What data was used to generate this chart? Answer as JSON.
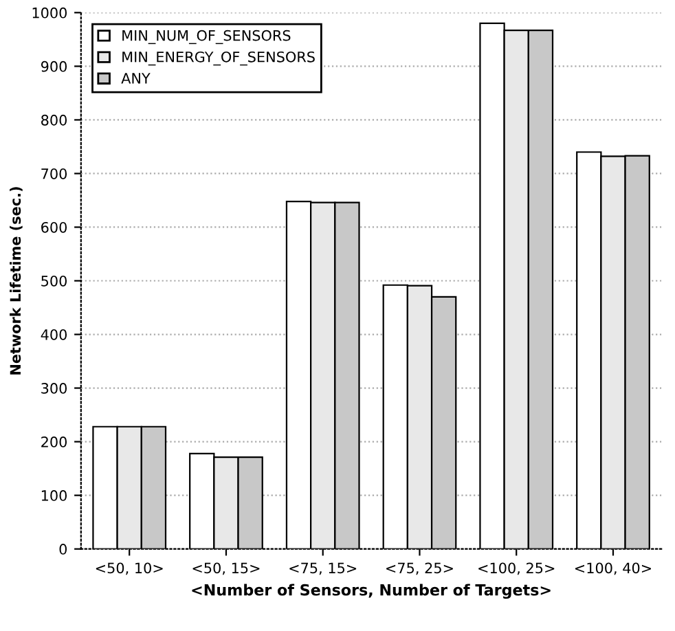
{
  "chart_data": {
    "type": "bar",
    "xlabel": "<Number of Sensors, Number of Targets>",
    "ylabel": "Network Lifetime (sec.)",
    "categories": [
      "<50, 10>",
      "<50, 15>",
      "<75, 15>",
      "<75, 25>",
      "<100, 25>",
      "<100, 40>"
    ],
    "series": [
      {
        "name": "MIN_NUM_OF_SENSORS",
        "color": "#ffffff",
        "values": [
          228,
          178,
          648,
          492,
          980,
          740
        ]
      },
      {
        "name": "MIN_ENERGY_OF_SENSORS",
        "color": "#e8e8e8",
        "values": [
          228,
          171,
          646,
          491,
          967,
          732
        ]
      },
      {
        "name": "ANY",
        "color": "#c8c8c8",
        "values": [
          228,
          171,
          646,
          470,
          967,
          733
        ]
      }
    ],
    "ylim": [
      0,
      1000
    ],
    "yticks": [
      0,
      100,
      200,
      300,
      400,
      500,
      600,
      700,
      800,
      900,
      1000
    ],
    "grid": "y",
    "legend": "top left"
  }
}
